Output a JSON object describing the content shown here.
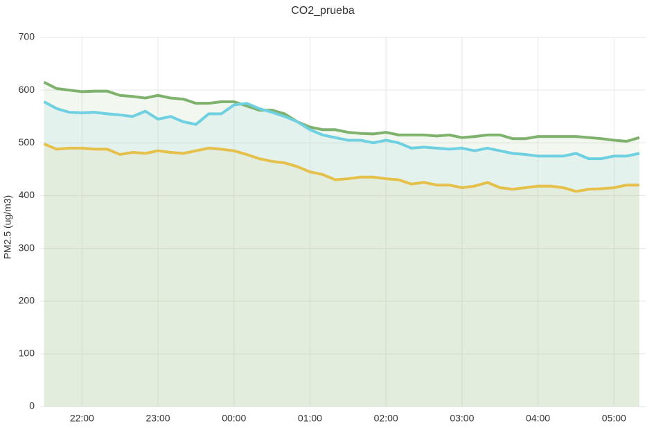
{
  "chart_data": {
    "type": "line",
    "title": "CO2_prueba",
    "y_label": "PM2.5 (ug/m3)",
    "x": [
      "21:30",
      "21:40",
      "21:50",
      "22:00",
      "22:10",
      "22:20",
      "22:30",
      "22:40",
      "22:50",
      "23:00",
      "23:10",
      "23:20",
      "23:30",
      "23:40",
      "23:50",
      "00:00",
      "00:10",
      "00:20",
      "00:30",
      "00:40",
      "00:50",
      "01:00",
      "01:10",
      "01:20",
      "01:30",
      "01:40",
      "01:50",
      "02:00",
      "02:10",
      "02:20",
      "02:30",
      "02:40",
      "02:50",
      "03:00",
      "03:10",
      "03:20",
      "03:30",
      "03:40",
      "03:50",
      "04:00",
      "04:10",
      "04:20",
      "04:30",
      "04:40",
      "04:50",
      "05:00",
      "05:10",
      "05:20"
    ],
    "series": [
      {
        "color": "#7eb26d",
        "values": [
          615,
          603,
          600,
          597,
          598,
          598,
          590,
          588,
          585,
          590,
          585,
          583,
          575,
          575,
          578,
          578,
          570,
          562,
          562,
          555,
          540,
          530,
          525,
          525,
          520,
          518,
          517,
          520,
          515,
          515,
          515,
          513,
          515,
          510,
          512,
          515,
          515,
          508,
          508,
          512,
          512,
          512,
          512,
          510,
          508,
          505,
          503,
          510
        ]
      },
      {
        "color": "#6ed0e0",
        "values": [
          578,
          565,
          558,
          557,
          558,
          555,
          553,
          550,
          560,
          545,
          550,
          540,
          535,
          555,
          555,
          572,
          575,
          565,
          558,
          550,
          540,
          525,
          515,
          510,
          505,
          505,
          500,
          505,
          500,
          490,
          492,
          490,
          488,
          490,
          485,
          490,
          485,
          480,
          478,
          475,
          475,
          475,
          480,
          470,
          470,
          475,
          475,
          480
        ]
      },
      {
        "color": "#e5c04b",
        "values": [
          498,
          488,
          490,
          490,
          488,
          488,
          478,
          482,
          480,
          485,
          482,
          480,
          485,
          490,
          488,
          485,
          478,
          470,
          465,
          462,
          455,
          445,
          440,
          430,
          432,
          435,
          435,
          432,
          430,
          422,
          425,
          420,
          420,
          415,
          418,
          425,
          415,
          412,
          415,
          418,
          418,
          415,
          408,
          412,
          413,
          415,
          420,
          420
        ]
      }
    ],
    "xlim": [
      "21:27",
      "05:25"
    ],
    "xticks": [
      "22:00",
      "23:00",
      "00:00",
      "01:00",
      "02:00",
      "03:00",
      "04:00",
      "05:00"
    ],
    "ylim": [
      0,
      700
    ],
    "yticks": [
      0,
      100,
      200,
      300,
      400,
      500,
      600,
      700
    ],
    "grid": true
  }
}
